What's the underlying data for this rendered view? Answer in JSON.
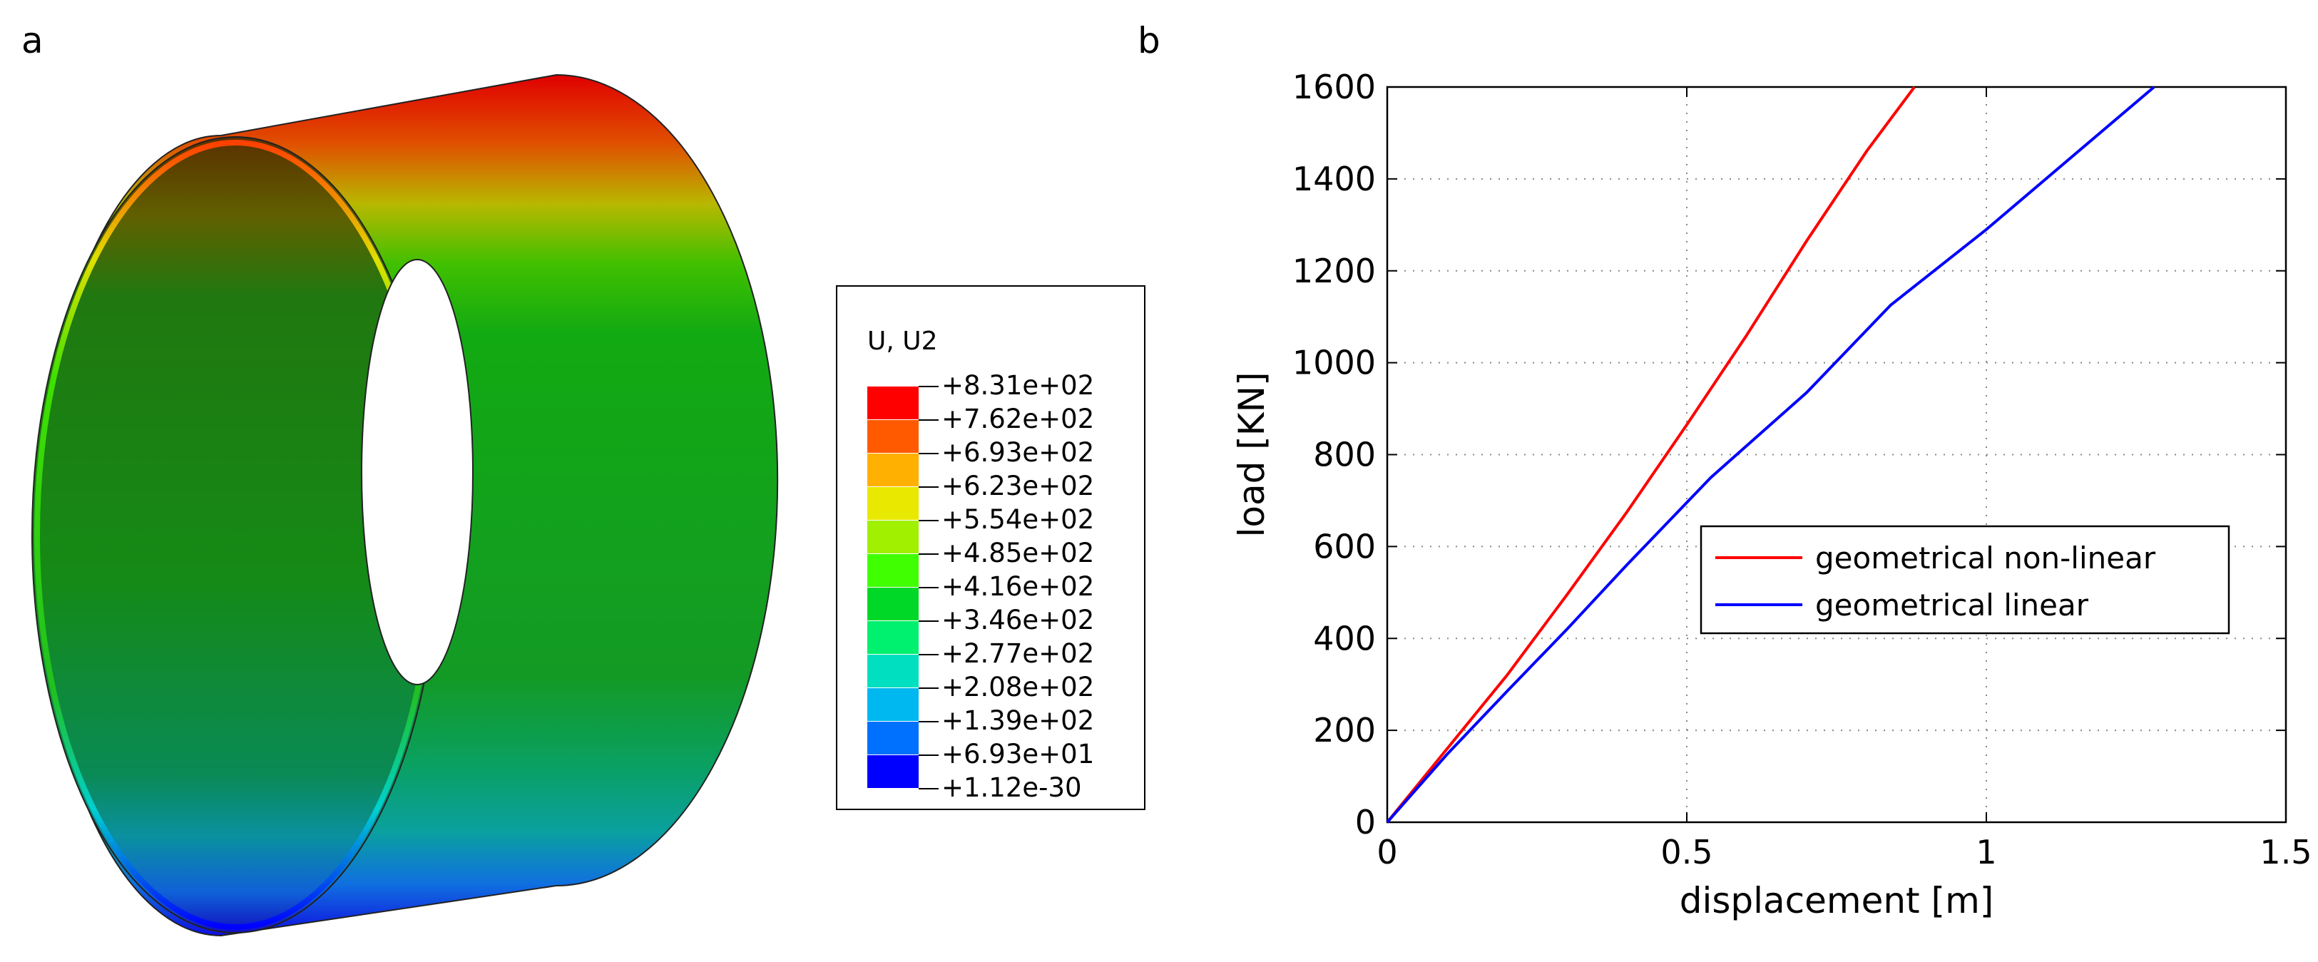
{
  "panels": {
    "a_label": "a",
    "b_label": "b"
  },
  "contour_legend": {
    "title": "U, U2",
    "levels": [
      "+8.31e+02",
      "+7.62e+02",
      "+6.93e+02",
      "+6.23e+02",
      "+5.54e+02",
      "+4.85e+02",
      "+4.16e+02",
      "+3.46e+02",
      "+2.77e+02",
      "+2.08e+02",
      "+1.39e+02",
      "+6.93e+01",
      "+1.12e-30"
    ],
    "colors": [
      "#ff0000",
      "#ff5a00",
      "#ffb000",
      "#e8e800",
      "#a0f000",
      "#40ff00",
      "#00d828",
      "#00f070",
      "#00e0c0",
      "#00b8f0",
      "#0070ff",
      "#0000ff"
    ]
  },
  "chart_data": {
    "type": "line",
    "xlabel": "displacement [m]",
    "ylabel": "load [KN]",
    "xlim": [
      0,
      1.5
    ],
    "ylim": [
      0,
      1600
    ],
    "xticks": [
      0,
      0.5,
      1,
      1.5
    ],
    "xtick_labels": [
      "0",
      "0.5",
      "1",
      "1.5"
    ],
    "yticks": [
      0,
      200,
      400,
      600,
      800,
      1000,
      1200,
      1400,
      1600
    ],
    "ytick_labels": [
      "0",
      "200",
      "400",
      "600",
      "800",
      "1000",
      "1200",
      "1400",
      "1600"
    ],
    "grid": true,
    "legend_position": "center-right",
    "series": [
      {
        "name": "geometrical non-linear",
        "color": "#ff0000",
        "x": [
          0,
          0.1,
          0.2,
          0.3,
          0.4,
          0.5,
          0.6,
          0.7,
          0.8,
          0.88
        ],
        "y": [
          0,
          160,
          320,
          495,
          675,
          865,
          1060,
          1265,
          1460,
          1600
        ]
      },
      {
        "name": "geometrical linear",
        "color": "#0000ff",
        "x": [
          0,
          0.1,
          0.2,
          0.3,
          0.4,
          0.54,
          0.7,
          0.84,
          1.0,
          1.28
        ],
        "y": [
          0,
          148,
          285,
          420,
          560,
          750,
          935,
          1125,
          1290,
          1600
        ]
      }
    ]
  }
}
